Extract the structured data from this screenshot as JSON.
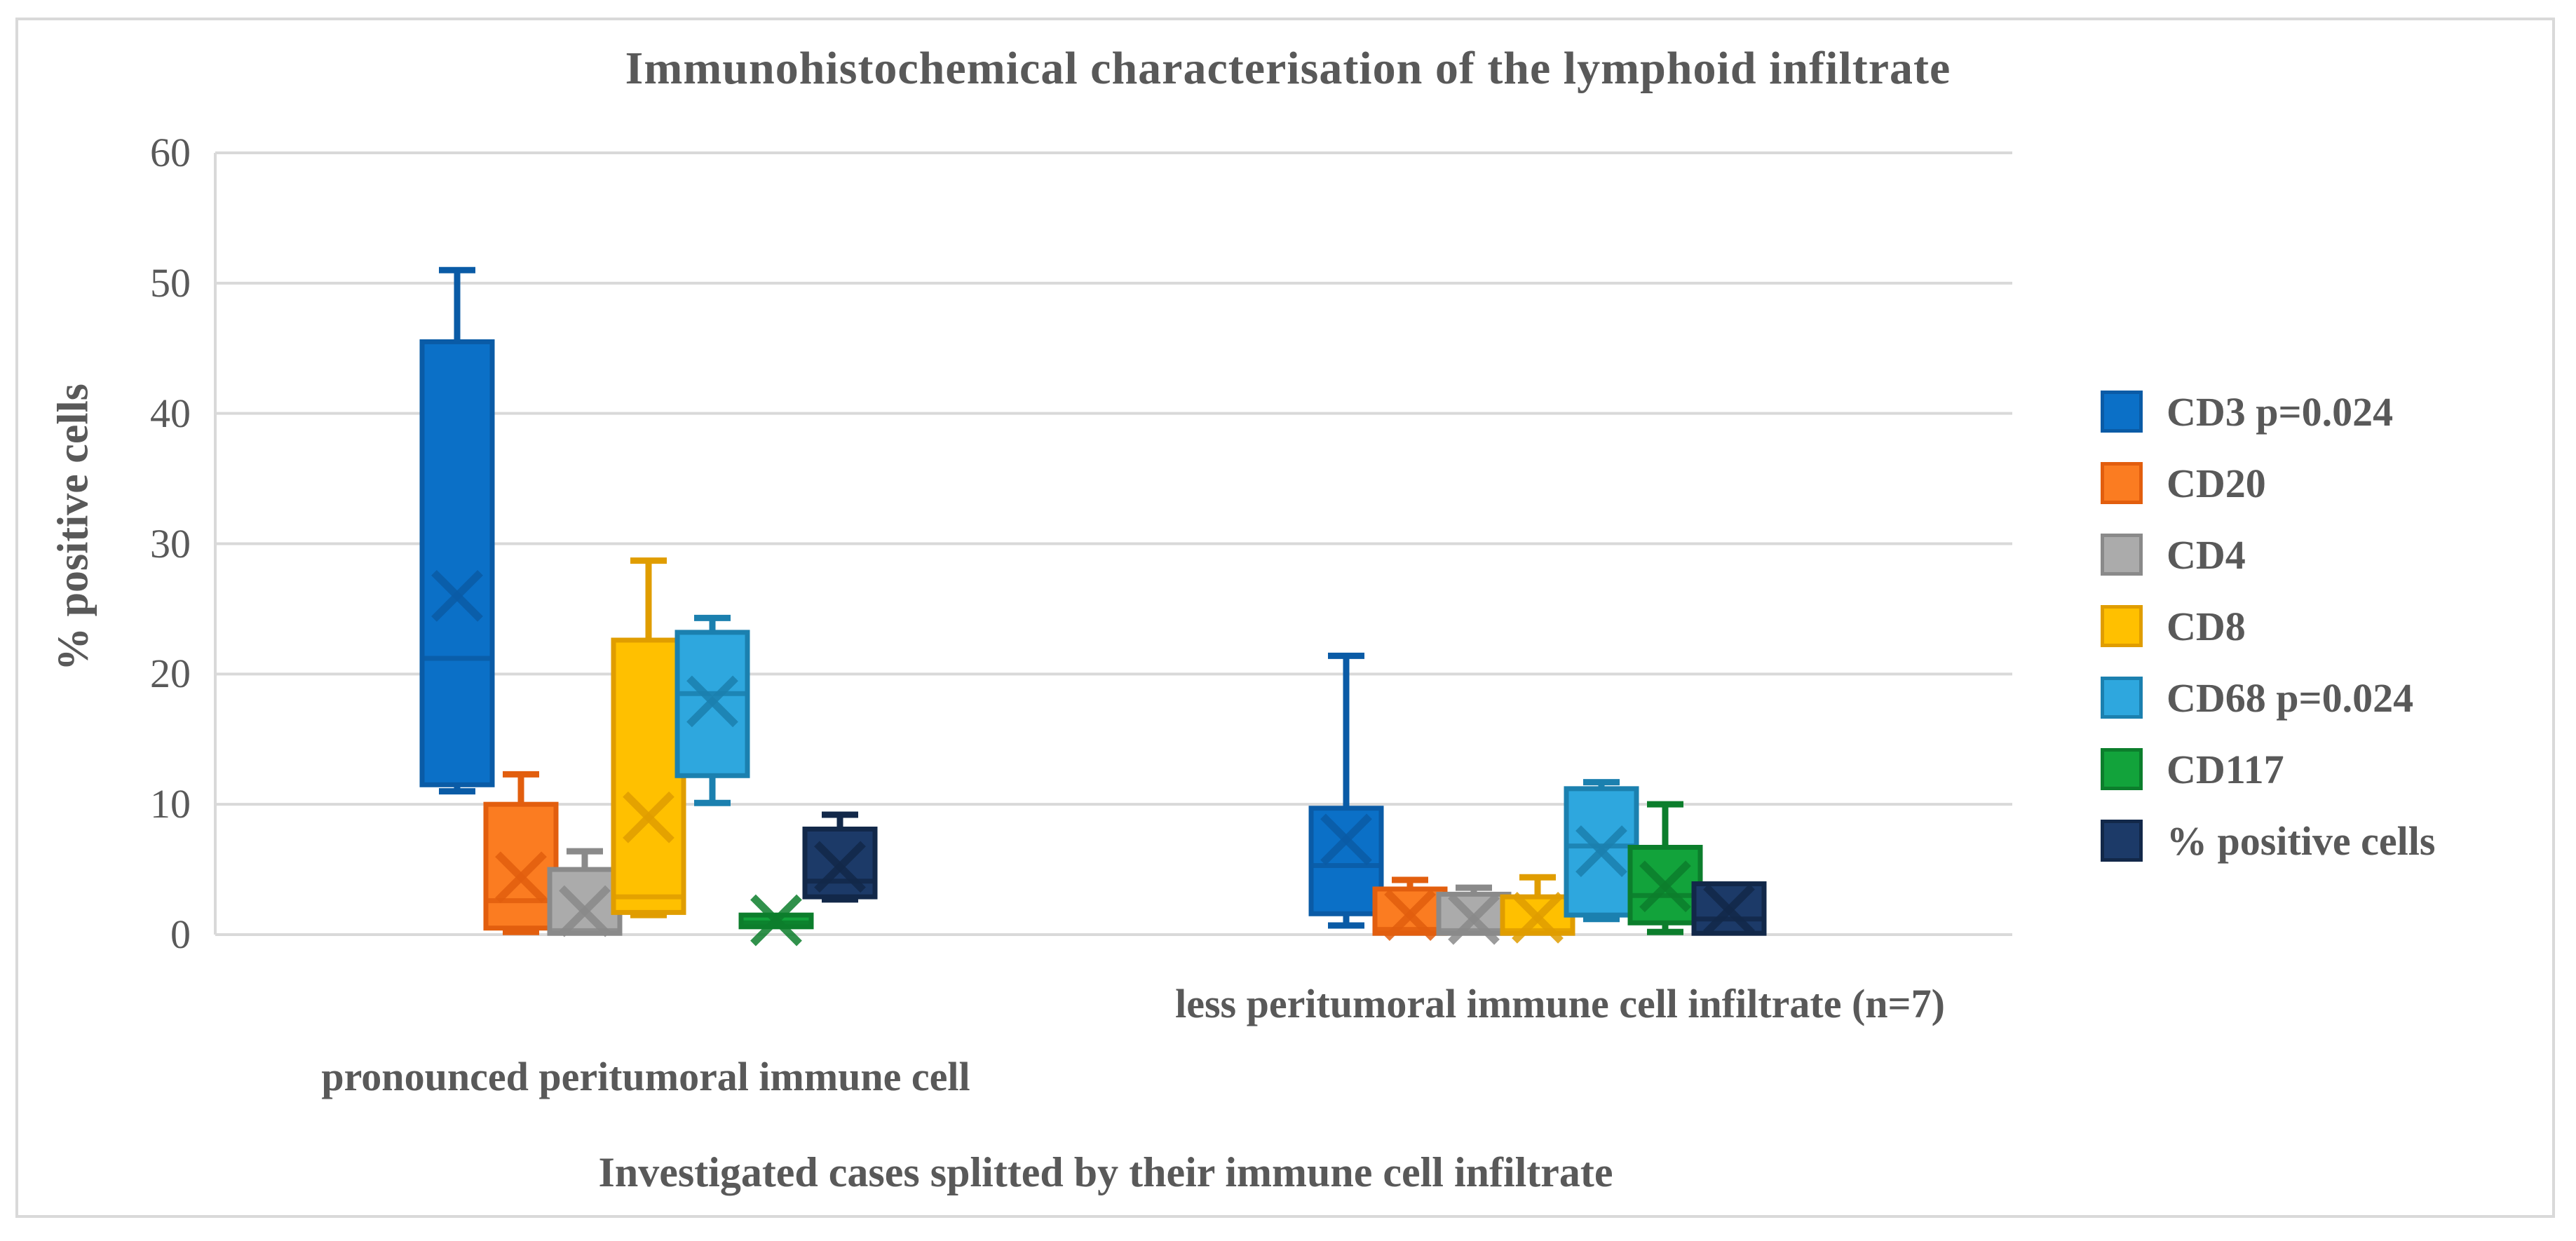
{
  "chart": {
    "title": "Immunohistochemical characterisation of the lymphoid infiltrate",
    "x_axis_label": "Investigated cases splitted by their immune cell infiltrate",
    "y_axis_label": "% positive cells",
    "text_color": "#595959",
    "grid_color": "#d9d9d9",
    "background_color": "#ffffff"
  },
  "chart_data": {
    "type": "boxplot",
    "title": "Immunohistochemical characterisation of the lymphoid infiltrate",
    "xlabel": "Investigated cases splitted by their immune cell infiltrate",
    "ylabel": "% positive cells",
    "ylim": [
      0,
      60
    ],
    "yticks": [
      0,
      10,
      20,
      30,
      40,
      50,
      60
    ],
    "grid": true,
    "legend_position": "right",
    "categories": [
      "pronounced peritumoral immune cell",
      "less peritumoral immune cell infiltrate (n=7)"
    ],
    "series": [
      {
        "name": "CD3 p=0.024",
        "color": "#0b70c7",
        "line_color": "#0a5ba6",
        "values": [
          {
            "min": 11.0,
            "q1": 11.5,
            "median": 21.2,
            "q3": 45.5,
            "max": 51.0,
            "mean": 26.0
          },
          {
            "min": 0.7,
            "q1": 1.6,
            "median": 5.3,
            "q3": 9.7,
            "max": 21.4,
            "mean": 7.3
          }
        ]
      },
      {
        "name": "CD20",
        "color": "#fb7c21",
        "line_color": "#e25e0e",
        "values": [
          {
            "min": 0.2,
            "q1": 0.5,
            "median": 2.6,
            "q3": 10.0,
            "max": 12.3,
            "mean": 4.4
          },
          {
            "min": 0.1,
            "q1": 0.1,
            "median": 0.4,
            "q3": 3.5,
            "max": 4.2,
            "mean": 1.5
          }
        ]
      },
      {
        "name": "CD4",
        "color": "#ababab",
        "line_color": "#8a8a8a",
        "values": [
          {
            "min": 0.1,
            "q1": 0.1,
            "median": 0.3,
            "q3": 5.0,
            "max": 6.4,
            "mean": 1.8
          },
          {
            "min": 0.1,
            "q1": 0.1,
            "median": 0.3,
            "q3": 3.1,
            "max": 3.6,
            "mean": 1.2
          }
        ]
      },
      {
        "name": "CD8",
        "color": "#ffc000",
        "line_color": "#e09d00",
        "values": [
          {
            "min": 1.5,
            "q1": 1.7,
            "median": 2.9,
            "q3": 22.6,
            "max": 28.7,
            "mean": 9.0
          },
          {
            "min": 0.1,
            "q1": 0.1,
            "median": 0.3,
            "q3": 2.9,
            "max": 4.4,
            "mean": 1.3
          }
        ]
      },
      {
        "name": "CD68 p=0.024",
        "color": "#2ea7de",
        "line_color": "#1b80af",
        "values": [
          {
            "min": 10.1,
            "q1": 12.2,
            "median": 18.5,
            "q3": 23.2,
            "max": 24.3,
            "mean": 17.9
          },
          {
            "min": 1.2,
            "q1": 1.5,
            "median": 6.8,
            "q3": 11.2,
            "max": 11.7,
            "mean": 6.4
          }
        ]
      },
      {
        "name": "CD117",
        "color": "#12a33b",
        "line_color": "#0c7e2c",
        "values": [
          {
            "min": 0.6,
            "q1": 0.6,
            "median": 0.9,
            "q3": 1.5,
            "max": 1.5,
            "mean": 1.1
          },
          {
            "min": 0.2,
            "q1": 0.9,
            "median": 3.0,
            "q3": 6.7,
            "max": 10.0,
            "mean": 3.7
          }
        ]
      },
      {
        "name": "% positive cells",
        "color": "#1c3a68",
        "line_color": "#122849",
        "values": [
          {
            "min": 2.7,
            "q1": 2.9,
            "median": 4.1,
            "q3": 8.1,
            "max": 9.2,
            "mean": 5.2
          },
          {
            "min": 0.1,
            "q1": 0.1,
            "median": 1.2,
            "q3": 3.9,
            "max": 3.9,
            "mean": 1.9
          }
        ]
      }
    ]
  }
}
